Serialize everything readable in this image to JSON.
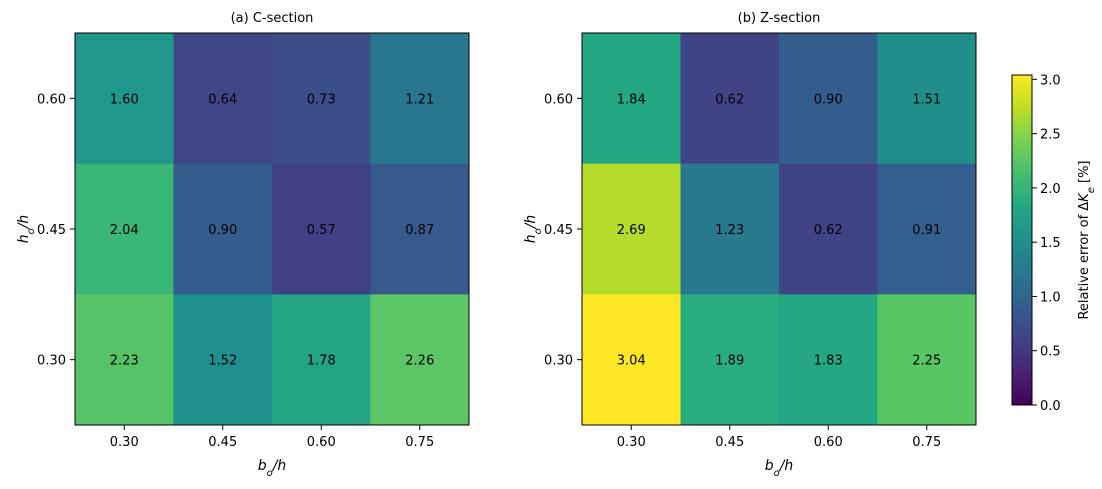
{
  "chart_data": [
    {
      "type": "heatmap",
      "title": "(a) C-section",
      "xlabel": "b_o/h",
      "ylabel": "h_o/h",
      "x_categories": [
        "0.30",
        "0.45",
        "0.60",
        "0.75"
      ],
      "y_categories": [
        "0.60",
        "0.45",
        "0.30"
      ],
      "values": [
        [
          1.6,
          0.64,
          0.73,
          1.21
        ],
        [
          2.04,
          0.9,
          0.57,
          0.87
        ],
        [
          2.23,
          1.52,
          1.78,
          2.26
        ]
      ],
      "value_labels": [
        [
          "1.60",
          "0.64",
          "0.73",
          "1.21"
        ],
        [
          "2.04",
          "0.90",
          "0.57",
          "0.87"
        ],
        [
          "2.23",
          "1.52",
          "1.78",
          "2.26"
        ]
      ]
    },
    {
      "type": "heatmap",
      "title": "(b) Z-section",
      "xlabel": "b_o/h",
      "ylabel": "h_o/h",
      "x_categories": [
        "0.30",
        "0.45",
        "0.60",
        "0.75"
      ],
      "y_categories": [
        "0.60",
        "0.45",
        "0.30"
      ],
      "values": [
        [
          1.84,
          0.62,
          0.9,
          1.51
        ],
        [
          2.69,
          1.23,
          0.62,
          0.91
        ],
        [
          3.04,
          1.89,
          1.83,
          2.25
        ]
      ],
      "value_labels": [
        [
          "1.84",
          "0.62",
          "0.90",
          "1.51"
        ],
        [
          "2.69",
          "1.23",
          "0.62",
          "0.91"
        ],
        [
          "3.04",
          "1.89",
          "1.83",
          "2.25"
        ]
      ]
    }
  ],
  "colorbar": {
    "label": "Relative error of ΔK_e [%]",
    "range": [
      0,
      3.04
    ],
    "colormap": "viridis",
    "ticks": [
      0.0,
      0.5,
      1.0,
      1.5,
      2.0,
      2.5,
      3.0
    ],
    "tick_labels": [
      "0.0",
      "0.5",
      "1.0",
      "1.5",
      "2.0",
      "2.5",
      "3.0"
    ]
  }
}
